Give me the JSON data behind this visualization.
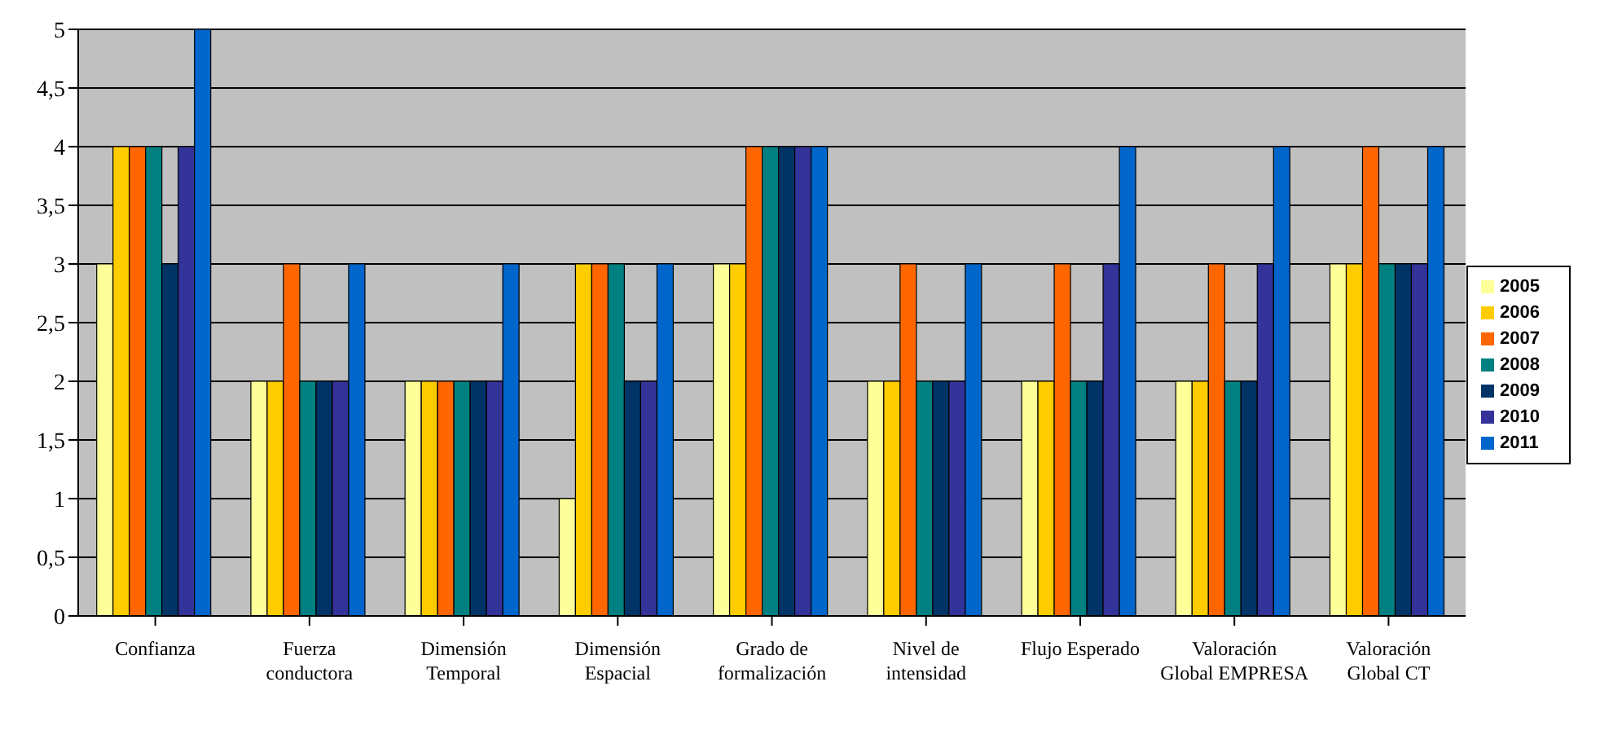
{
  "chart_data": {
    "type": "bar",
    "categories": [
      "Confianza",
      "Fuerza conductora",
      "Dimensión Temporal",
      "Dimensión Espacial",
      "Grado de formalización",
      "Nivel de intensidad",
      "Flujo Esperado",
      "Valoración Global EMPRESA",
      "Valoración Global CT"
    ],
    "series": [
      {
        "name": "2005",
        "color": "#ffff99",
        "values": [
          3,
          2,
          2,
          1,
          3,
          2,
          2,
          2,
          3
        ]
      },
      {
        "name": "2006",
        "color": "#ffcc00",
        "values": [
          4,
          2,
          2,
          3,
          3,
          2,
          2,
          2,
          3
        ]
      },
      {
        "name": "2007",
        "color": "#ff6600",
        "values": [
          4,
          3,
          2,
          3,
          4,
          3,
          3,
          3,
          4
        ]
      },
      {
        "name": "2008",
        "color": "#008080",
        "values": [
          4,
          2,
          2,
          3,
          4,
          2,
          2,
          2,
          3
        ]
      },
      {
        "name": "2009",
        "color": "#003366",
        "values": [
          3,
          2,
          2,
          2,
          4,
          2,
          2,
          2,
          3
        ]
      },
      {
        "name": "2010",
        "color": "#333399",
        "values": [
          4,
          2,
          2,
          2,
          4,
          2,
          3,
          3,
          3
        ]
      },
      {
        "name": "2011",
        "color": "#0066cc",
        "values": [
          5,
          3,
          3,
          3,
          4,
          3,
          4,
          4,
          4
        ]
      }
    ],
    "ylim": [
      0,
      5
    ],
    "yticks": [
      0,
      {
        "value": 0.5,
        "label": "0,5"
      },
      1,
      {
        "value": 1.5,
        "label": "1,5"
      },
      2,
      {
        "value": 2.5,
        "label": "2,5"
      },
      3,
      {
        "value": 3.5,
        "label": "3,5"
      },
      4,
      {
        "value": 4.5,
        "label": "4,5"
      },
      5
    ],
    "grid": "y",
    "legend": "right"
  }
}
